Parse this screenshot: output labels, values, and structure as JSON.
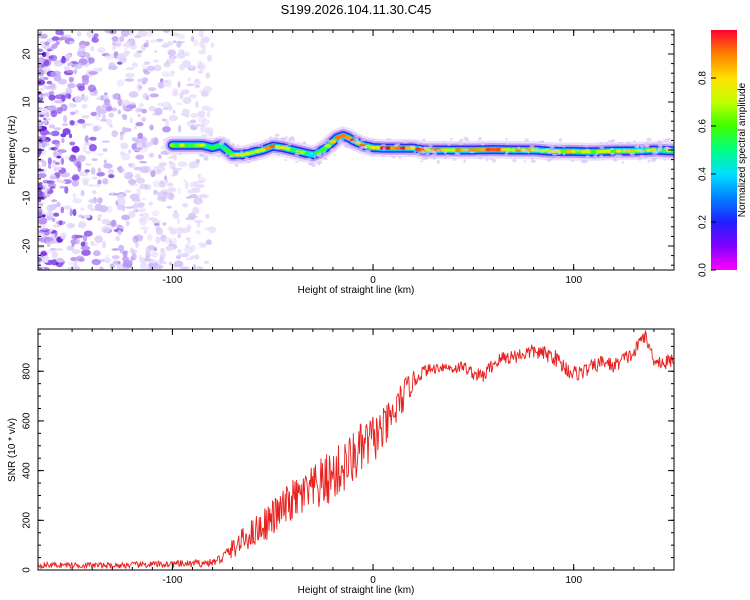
{
  "figure_title": "S199.2026.104.11.30.C45",
  "colors": {
    "snr_line": "#e8201e",
    "axis": "#000000",
    "scatter_noise": [
      "#e6dcfb",
      "#d3c2f7",
      "#b591f1",
      "#8c52ea",
      "#6a1fe0"
    ]
  },
  "chart_data": [
    {
      "type": "heatmap",
      "xlabel": "Height of straight line (km)",
      "ylabel": "Frequency (Hz)",
      "xlim": [
        -167,
        150
      ],
      "ylim": [
        -25,
        25
      ],
      "xticks": [
        -100,
        0,
        100
      ],
      "xtick_labels": [
        "-100",
        "0",
        "100"
      ],
      "yticks": [
        -20,
        -10,
        0,
        10,
        20
      ],
      "ytick_labels": [
        "-20",
        "-10",
        "0",
        "10",
        "20"
      ],
      "ridge": {
        "x": [
          -100,
          -95,
          -90,
          -85,
          -80,
          -76,
          -70,
          -65,
          -60,
          -55,
          -50,
          -45,
          -40,
          -35,
          -30,
          -27,
          -25,
          -22,
          -18,
          -15,
          -12,
          -10,
          -5,
          0,
          5,
          10,
          15,
          20,
          25,
          35,
          50,
          60,
          70,
          80,
          90,
          100,
          110,
          120,
          130,
          140,
          150
        ],
        "y": [
          1,
          1,
          1,
          1,
          0.5,
          1,
          -1,
          -1,
          -0.5,
          0,
          0.8,
          0.5,
          0,
          -0.5,
          -1,
          -0.5,
          0,
          1,
          2.5,
          3,
          2.5,
          2,
          1,
          0.5,
          0.4,
          0.4,
          0.4,
          0.4,
          0,
          0,
          0,
          0.1,
          0,
          0,
          -0.3,
          -0.3,
          -0.4,
          -0.2,
          -0.2,
          0,
          -0.2
        ],
        "amplitude": [
          0.55,
          0.7,
          0.6,
          0.6,
          0.5,
          0.45,
          0.75,
          0.8,
          0.75,
          0.72,
          0.85,
          0.7,
          0.65,
          0.6,
          0.45,
          0.55,
          0.6,
          0.75,
          0.9,
          0.95,
          0.9,
          0.85,
          0.8,
          0.75,
          0.9,
          1.0,
          0.95,
          0.9,
          0.8,
          0.82,
          0.85,
          0.95,
          0.8,
          0.75,
          0.7,
          0.75,
          0.7,
          0.72,
          0.7,
          0.65,
          0.6
        ]
      },
      "noise_region_x": [
        -167,
        -80
      ],
      "colorbar": {
        "label": "Normalized spectral amplitude",
        "range": [
          0,
          1
        ],
        "ticks": [
          0.0,
          0.2,
          0.4,
          0.6,
          0.8
        ],
        "tick_labels": [
          "0.0",
          "0.2",
          "0.4",
          "0.6",
          "0.8"
        ]
      }
    },
    {
      "type": "line",
      "xlabel": "Height of straight line (km)",
      "ylabel": "SNR (10 * v/v)",
      "xlim": [
        -167,
        150
      ],
      "ylim": [
        0,
        970
      ],
      "xticks": [
        -100,
        0,
        100
      ],
      "xtick_labels": [
        "-100",
        "0",
        "100"
      ],
      "yticks": [
        0,
        200,
        400,
        600,
        800
      ],
      "ytick_labels": [
        "0",
        "200",
        "400",
        "600",
        "800"
      ],
      "series": [
        {
          "name": "SNR",
          "x": [
            -167,
            -150,
            -130,
            -110,
            -90,
            -80,
            -75,
            -70,
            -65,
            -60,
            -55,
            -50,
            -45,
            -40,
            -35,
            -30,
            -25,
            -20,
            -15,
            -10,
            -5,
            0,
            5,
            10,
            15,
            20,
            25,
            30,
            35,
            40,
            45,
            50,
            55,
            60,
            65,
            70,
            75,
            80,
            85,
            90,
            95,
            100,
            105,
            110,
            115,
            120,
            125,
            130,
            135,
            140,
            145,
            150
          ],
          "values": [
            20,
            20,
            18,
            22,
            25,
            30,
            50,
            85,
            120,
            150,
            180,
            210,
            245,
            280,
            300,
            320,
            350,
            380,
            410,
            450,
            490,
            530,
            560,
            620,
            700,
            760,
            800,
            810,
            820,
            810,
            820,
            790,
            780,
            830,
            855,
            860,
            870,
            880,
            870,
            860,
            820,
            790,
            800,
            820,
            840,
            820,
            850,
            870,
            950,
            850,
            830,
            850
          ],
          "noise_amplitude": [
            12,
            12,
            12,
            14,
            15,
            15,
            25,
            40,
            50,
            60,
            70,
            75,
            80,
            85,
            90,
            100,
            110,
            110,
            110,
            110,
            110,
            100,
            90,
            80,
            70,
            40,
            25,
            22,
            22,
            22,
            25,
            25,
            28,
            30,
            30,
            30,
            30,
            30,
            30,
            35,
            35,
            35,
            30,
            30,
            30,
            30,
            30,
            30,
            30,
            30,
            30,
            30
          ]
        }
      ]
    }
  ]
}
